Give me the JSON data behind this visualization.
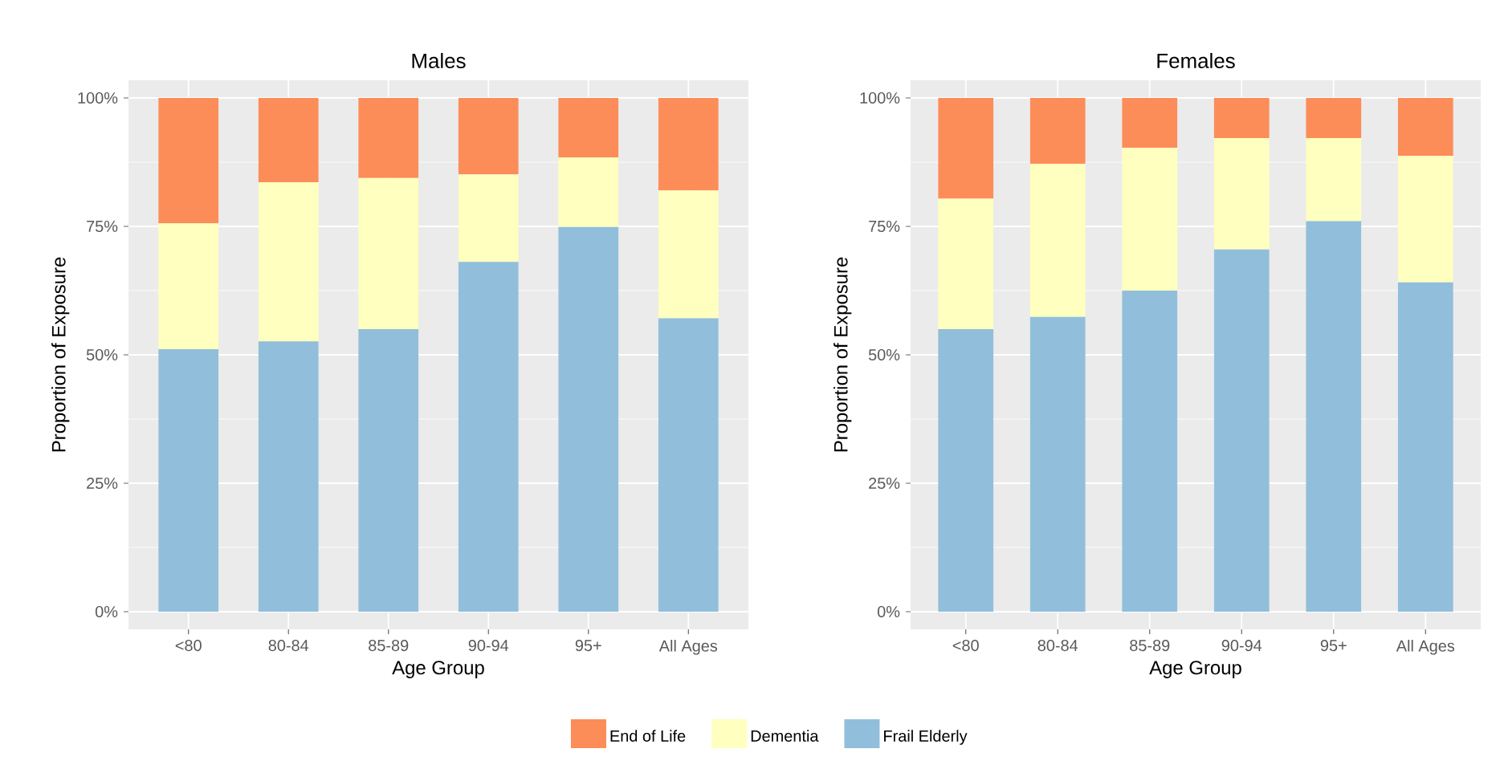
{
  "chart_data": [
    {
      "type": "bar",
      "stacked": true,
      "title": "Males",
      "xlabel": "Age Group",
      "ylabel": "Proportion of Exposure",
      "categories": [
        "<80",
        "80-84",
        "85-89",
        "90-94",
        "95+",
        "All Ages"
      ],
      "series": [
        {
          "name": "Frail Elderly",
          "color": "#91bfdb",
          "values": [
            51.1,
            52.6,
            55.0,
            68.1,
            74.9,
            57.1
          ]
        },
        {
          "name": "Dementia",
          "color": "#ffffbf",
          "values": [
            24.5,
            31.0,
            29.4,
            17.0,
            13.5,
            24.9
          ]
        },
        {
          "name": "End of Life",
          "color": "#fc8d59",
          "values": [
            24.4,
            16.4,
            15.6,
            14.9,
            11.6,
            18.0
          ]
        }
      ],
      "ylim": [
        0,
        100
      ],
      "yticks": [
        {
          "value": 0,
          "label": "0%"
        },
        {
          "value": 25,
          "label": "25%"
        },
        {
          "value": 50,
          "label": "50%"
        },
        {
          "value": 75,
          "label": "75%"
        },
        {
          "value": 100,
          "label": "100%"
        }
      ],
      "grid": true,
      "legend": "bottom"
    },
    {
      "type": "bar",
      "stacked": true,
      "title": "Females",
      "xlabel": "Age Group",
      "ylabel": "Proportion of Exposure",
      "categories": [
        "<80",
        "80-84",
        "85-89",
        "90-94",
        "95+",
        "All Ages"
      ],
      "series": [
        {
          "color": "#91bfdb",
          "values": [
            55.0,
            57.4,
            62.5,
            70.5,
            76.0,
            64.1
          ]
        },
        {
          "color": "#ffffbf",
          "values": [
            25.4,
            29.8,
            27.8,
            21.7,
            16.2,
            24.6
          ]
        },
        {
          "color": "#fc8d59",
          "values": [
            19.6,
            12.8,
            9.7,
            7.8,
            7.8,
            11.3
          ]
        }
      ],
      "ylim": [
        0,
        100
      ],
      "yticks": [
        {
          "value": 0,
          "label": "0%"
        },
        {
          "value": 25,
          "label": "25%"
        },
        {
          "value": 50,
          "label": "50%"
        },
        {
          "value": 75,
          "label": "75%"
        },
        {
          "value": 100,
          "label": "100%"
        }
      ],
      "grid": true
    }
  ]
}
